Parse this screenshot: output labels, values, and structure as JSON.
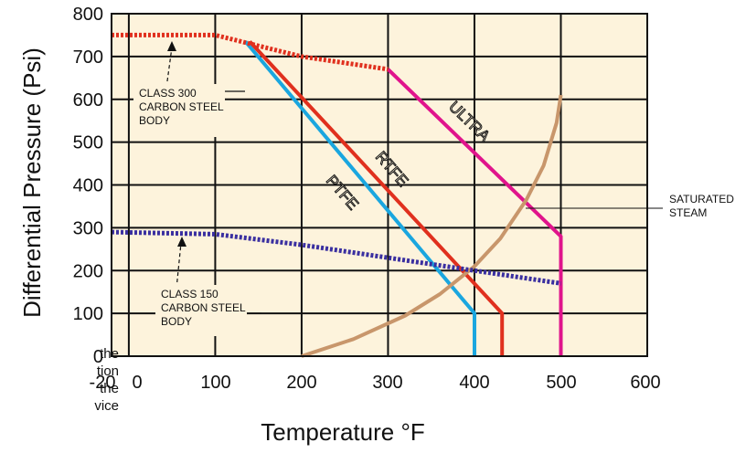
{
  "chart_data": {
    "type": "line",
    "xlabel": "Temperature °F",
    "ylabel": "Differential Pressure (Psi)",
    "xlim": [
      -20,
      600
    ],
    "ylim": [
      0,
      800
    ],
    "x_ticks": [
      "-20",
      "0",
      "100",
      "200",
      "300",
      "400",
      "500",
      "600"
    ],
    "y_ticks": [
      "0",
      "100",
      "200",
      "300",
      "400",
      "500",
      "600",
      "700",
      "800"
    ],
    "grid": true,
    "background": "#fdf3dc",
    "series": [
      {
        "name": "PTFE",
        "color": "#1aa6df",
        "dash": false,
        "x": [
          135,
          400,
          400
        ],
        "y": [
          735,
          100,
          0
        ]
      },
      {
        "name": "RTFE",
        "color": "#e0301e",
        "dash": false,
        "x": [
          140,
          432,
          432
        ],
        "y": [
          735,
          100,
          0
        ]
      },
      {
        "name": "ULTRA",
        "color": "#e0148c",
        "dash": false,
        "x": [
          300,
          500,
          500
        ],
        "y": [
          670,
          280,
          0
        ]
      },
      {
        "name": "SATURATED STEAM",
        "color": "#c8966b",
        "dash": false,
        "x": [
          200,
          260,
          320,
          360,
          400,
          430,
          460,
          480,
          495,
          500
        ],
        "y": [
          0,
          40,
          95,
          145,
          210,
          275,
          365,
          445,
          545,
          610
        ]
      },
      {
        "name": "CLASS 300 CARBON STEEL BODY",
        "color": "#e0301e",
        "dash": true,
        "x": [
          -20,
          100,
          200,
          300
        ],
        "y": [
          750,
          750,
          700,
          670
        ]
      },
      {
        "name": "CLASS 150 CARBON STEEL BODY",
        "color": "#3a2fa0",
        "dash": true,
        "x": [
          -20,
          100,
          200,
          300,
          400,
          500
        ],
        "y": [
          290,
          285,
          260,
          230,
          200,
          170
        ]
      }
    ],
    "annotations": [
      {
        "lines": [
          "CLASS 300",
          "CARBON STEEL",
          "BODY"
        ]
      },
      {
        "lines": [
          "CLASS 150",
          "CARBON STEEL",
          "BODY"
        ]
      },
      {
        "lines": [
          "SATURATED",
          "STEAM"
        ]
      }
    ]
  },
  "side_text": [
    "the",
    "tion",
    "the",
    "vice"
  ]
}
